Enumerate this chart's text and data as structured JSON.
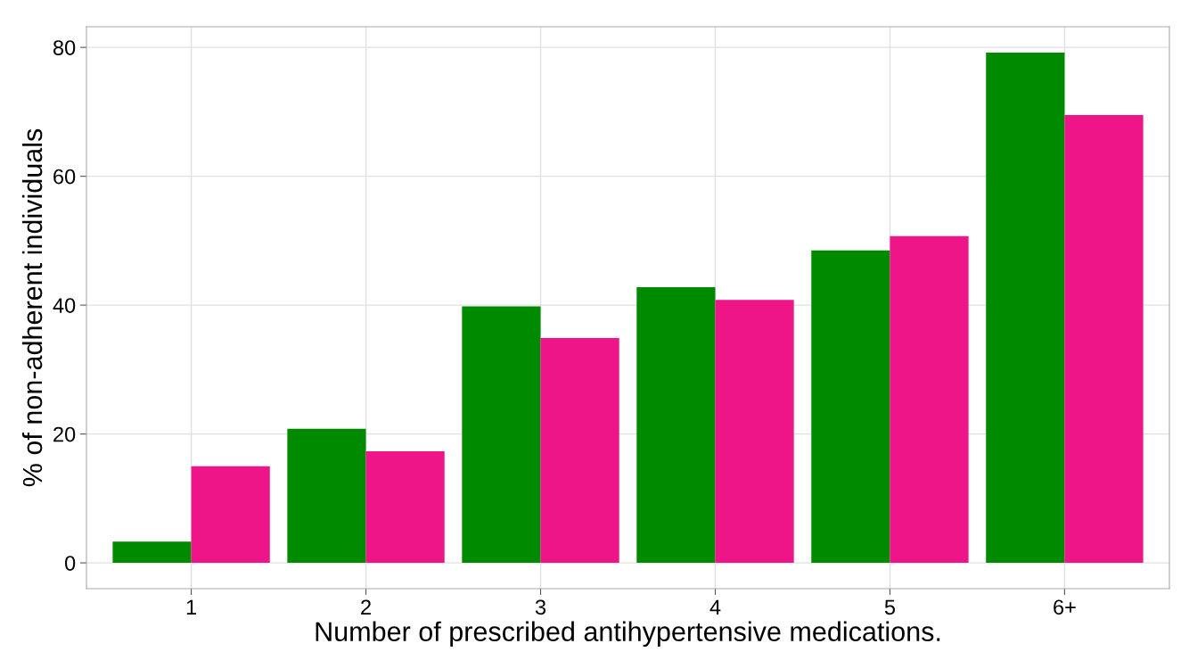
{
  "chart_data": {
    "type": "bar",
    "xlabel": "Number of prescribed antihypertensive medications.",
    "ylabel": "% of non-adherent individuals",
    "categories": [
      "1",
      "2",
      "3",
      "4",
      "5",
      "6+"
    ],
    "series": [
      {
        "color": "#008a00",
        "values": [
          3.3,
          20.8,
          39.8,
          42.8,
          48.5,
          79.2
        ]
      },
      {
        "color": "#ee1589",
        "values": [
          15.0,
          17.3,
          34.9,
          40.8,
          50.7,
          69.5
        ]
      }
    ],
    "ylim": [
      -4,
      83.2
    ],
    "yticks": [
      0,
      20,
      40,
      60,
      80
    ],
    "grid": true
  }
}
